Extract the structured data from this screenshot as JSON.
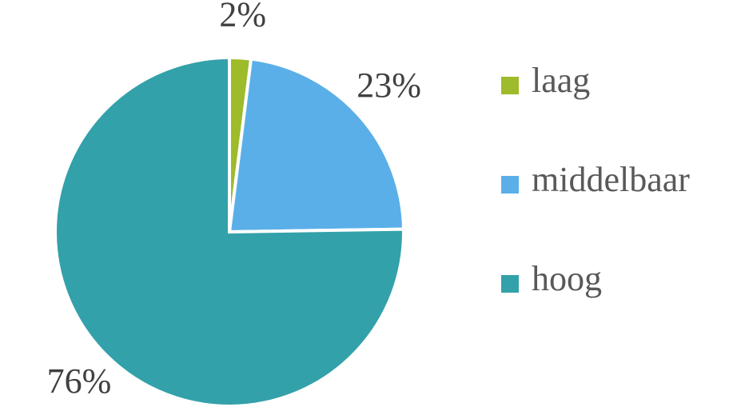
{
  "chart_data": {
    "type": "pie",
    "categories": [
      "laag",
      "middelbaar",
      "hoog"
    ],
    "values": [
      2,
      23,
      76
    ],
    "value_labels": [
      "2%",
      "23%",
      "76%"
    ],
    "colors": [
      "#9dbb2a",
      "#5aafe8",
      "#33a1a9"
    ],
    "legend": "right"
  }
}
